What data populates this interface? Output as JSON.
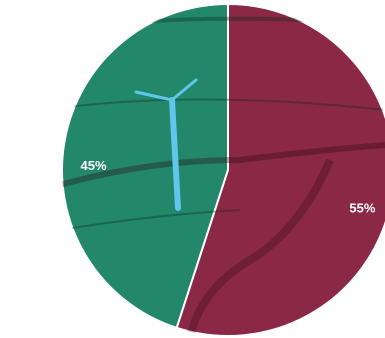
{
  "chart_data": {
    "type": "pie",
    "values": [
      45,
      55
    ],
    "value_labels": [
      "45%",
      "55%"
    ],
    "colors": [
      "#23876a",
      "#8a2846"
    ]
  }
}
